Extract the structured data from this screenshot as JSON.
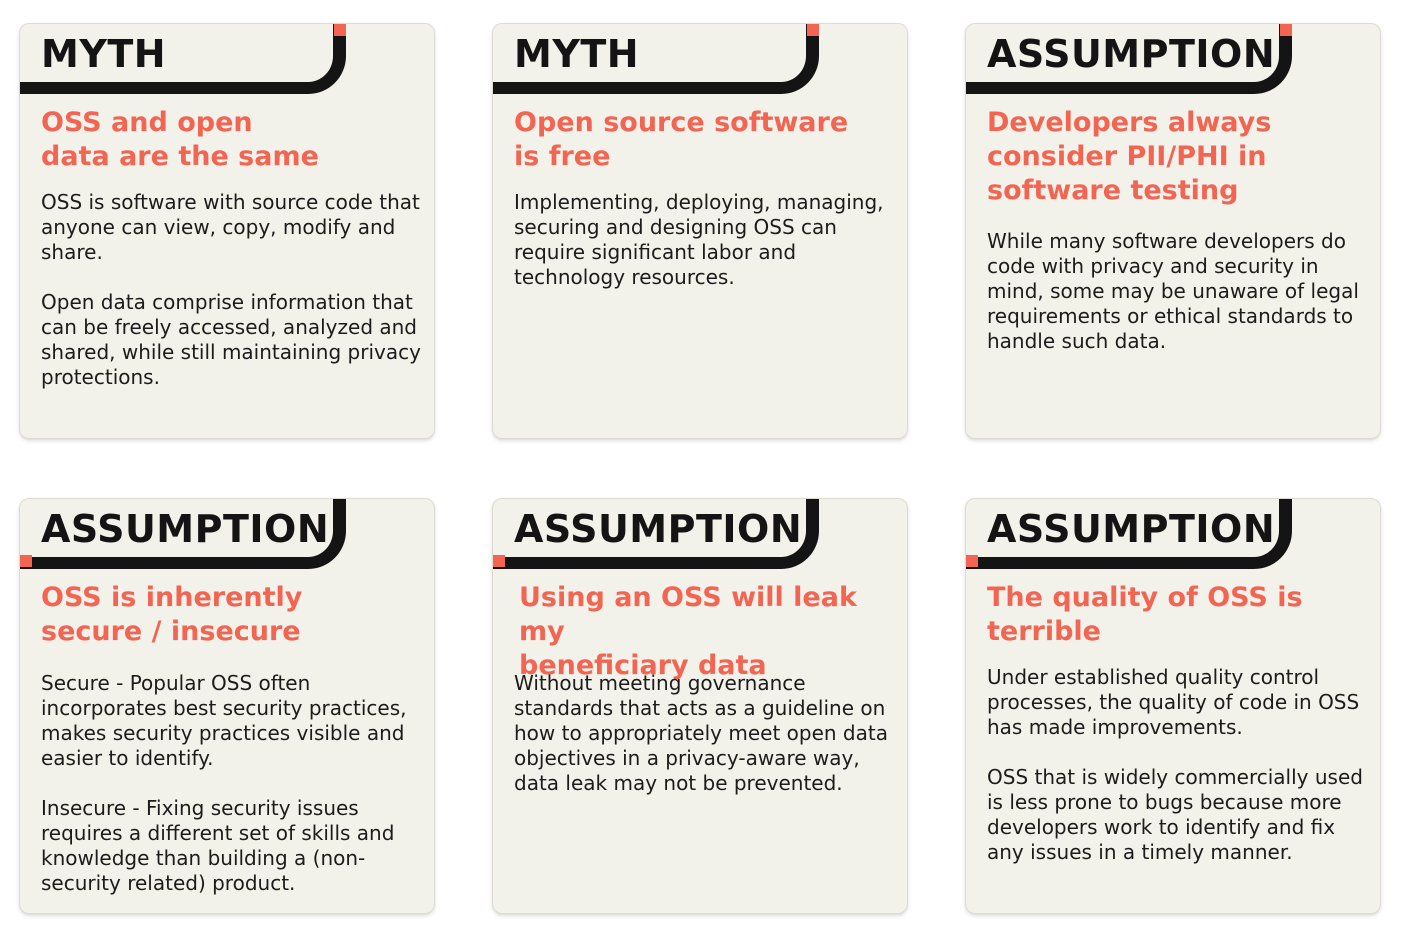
{
  "cards": [
    {
      "tag": "MYTH",
      "title": [
        "OSS and open",
        "data are the same"
      ],
      "paragraphs": [
        "OSS is software with source code that anyone can view, copy, modify and share.",
        "Open data comprise information that can be freely accessed, analyzed and shared, while still maintaining privacy protections."
      ]
    },
    {
      "tag": "MYTH",
      "title": [
        "Open source software",
        "is free"
      ],
      "paragraphs": [
        "Implementing, deploying, managing, securing and designing OSS can require significant labor and technology resources."
      ]
    },
    {
      "tag": "ASSUMPTION",
      "title": [
        "Developers always",
        "consider PII/PHI in",
        "software testing"
      ],
      "paragraphs": [
        "While many software developers do code with privacy and security in mind, some may be unaware of legal requirements or ethical standards to handle such data."
      ]
    },
    {
      "tag": "ASSUMPTION",
      "title": [
        "OSS is inherently",
        "secure / insecure"
      ],
      "paragraphs": [
        "Secure - Popular OSS often incorporates best security practices, makes security practices visible and easier to identify.",
        "Insecure - Fixing security issues requires a different set of skills and knowledge than building a (non-security related) product."
      ]
    },
    {
      "tag": "ASSUMPTION",
      "title": [
        "Using an OSS will leak my",
        "beneficiary data"
      ],
      "paragraphs": [
        "Without meeting governance standards that  acts as a guideline on how to appropriately meet open data objectives in a privacy-aware way, data leak may not be prevented."
      ]
    },
    {
      "tag": "ASSUMPTION",
      "title": [
        "The quality of OSS is",
        "terrible"
      ],
      "paragraphs": [
        "Under established quality control processes, the quality of code in OSS has made improvements.",
        "OSS that is widely commercially used is less prone to bugs because more developers work to identify and fix any issues in a timely manner."
      ]
    }
  ],
  "colors": {
    "accent": "#f26552",
    "card_background": "#f2f1ea",
    "ink": "#141414"
  }
}
